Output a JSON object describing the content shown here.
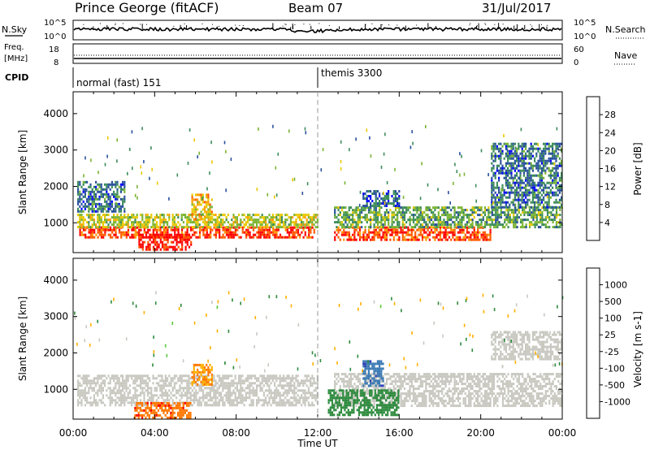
{
  "header": {
    "station": "Prince George (fitACF)",
    "beam": "Beam 07",
    "date": "31/Jul/2017"
  },
  "strips": {
    "nsky_label": "N.Sky",
    "nsky_ticks": [
      "10^5",
      "10^0"
    ],
    "nsearch_label": "N.Search",
    "nsearch_ticks": [
      "10^5",
      "10^0"
    ],
    "freq_label": [
      "Freq.",
      "[MHz]"
    ],
    "freq_ticks": [
      "18",
      "8"
    ],
    "nave_label": "Nave",
    "nave_ticks": [
      "60",
      "0"
    ],
    "cpid_label": "CPID",
    "cpid_segments": [
      {
        "name": "normal (fast) 151",
        "start_hour": 0
      },
      {
        "name": "themis 3300",
        "start_hour": 12
      }
    ]
  },
  "chart_data": [
    {
      "type": "heatmap",
      "panel": "power",
      "ylabel": "Slant Range [km]",
      "xlabel": "",
      "xlim_hours": [
        0,
        24
      ],
      "ylim_km": [
        180,
        4600
      ],
      "y_ticks": [
        1000,
        2000,
        3000,
        4000
      ],
      "colorbar_label": "Power [dB]",
      "colorbar_ticks": [
        "28",
        "24",
        "20",
        "16",
        "12",
        "8",
        "4"
      ],
      "colorbar_colors": [
        "#ff0000",
        "#ff5a00",
        "#ff9a00",
        "#e8c800",
        "#7ab432",
        "#3c8c5a",
        "#28509c",
        "#0000ff"
      ],
      "echo_regions": [
        {
          "t0": 0.3,
          "t1": 11.8,
          "r0": 600,
          "r1": 900,
          "level": 26
        },
        {
          "t0": 3.2,
          "t1": 5.8,
          "r0": 250,
          "r1": 700,
          "level": 28
        },
        {
          "t0": 0.2,
          "t1": 12.0,
          "r0": 850,
          "r1": 1250,
          "level": 14
        },
        {
          "t0": 0.2,
          "t1": 2.5,
          "r0": 1300,
          "r1": 2150,
          "level": 6
        },
        {
          "t0": 5.8,
          "t1": 6.8,
          "r0": 1100,
          "r1": 1800,
          "level": 18
        },
        {
          "t0": 12.8,
          "t1": 20.5,
          "r0": 550,
          "r1": 900,
          "level": 25
        },
        {
          "t0": 12.8,
          "t1": 24.0,
          "r0": 850,
          "r1": 1450,
          "level": 10
        },
        {
          "t0": 14.2,
          "t1": 16.0,
          "r0": 1450,
          "r1": 1900,
          "level": 5
        },
        {
          "t0": 20.5,
          "t1": 24.0,
          "r0": 1450,
          "r1": 3200,
          "level": 6
        }
      ]
    },
    {
      "type": "heatmap",
      "panel": "velocity",
      "ylabel": "Slant Range [km]",
      "xlabel": "Time UT",
      "xlim_hours": [
        0,
        24
      ],
      "ylim_km": [
        180,
        4600
      ],
      "y_ticks": [
        1000,
        2000,
        3000,
        4000
      ],
      "x_ticks": [
        "00:00",
        "04:00",
        "08:00",
        "12:00",
        "16:00",
        "20:00",
        "00:00"
      ],
      "colorbar_label": "Velocity [m s-1]",
      "colorbar_ticks": [
        "1000",
        "500",
        "100",
        "25",
        "-25",
        "-100",
        "-500",
        "-1000"
      ],
      "colorbar_colors": [
        "#2a3cb4",
        "#3c7ab4",
        "#2c8a3c",
        "#5ac83c",
        "#c8c8c0",
        "#c8c8c0",
        "#ffb000",
        "#ff7800",
        "#ff0000"
      ],
      "echo_regions": [
        {
          "t0": 0.2,
          "t1": 12.0,
          "r0": 550,
          "r1": 1400,
          "level": 0
        },
        {
          "t0": 12.8,
          "t1": 24.0,
          "r0": 550,
          "r1": 1450,
          "level": 0
        },
        {
          "t0": 3.0,
          "t1": 5.8,
          "r0": 200,
          "r1": 650,
          "level": -600
        },
        {
          "t0": 5.8,
          "t1": 6.8,
          "r0": 1100,
          "r1": 1700,
          "level": -300
        },
        {
          "t0": 12.5,
          "t1": 16.0,
          "r0": 300,
          "r1": 1000,
          "level": 150
        },
        {
          "t0": 14.2,
          "t1": 15.2,
          "r0": 1100,
          "r1": 1800,
          "level": 600
        },
        {
          "t0": 20.5,
          "t1": 24.0,
          "r0": 1800,
          "r1": 2600,
          "level": 0
        }
      ]
    }
  ]
}
